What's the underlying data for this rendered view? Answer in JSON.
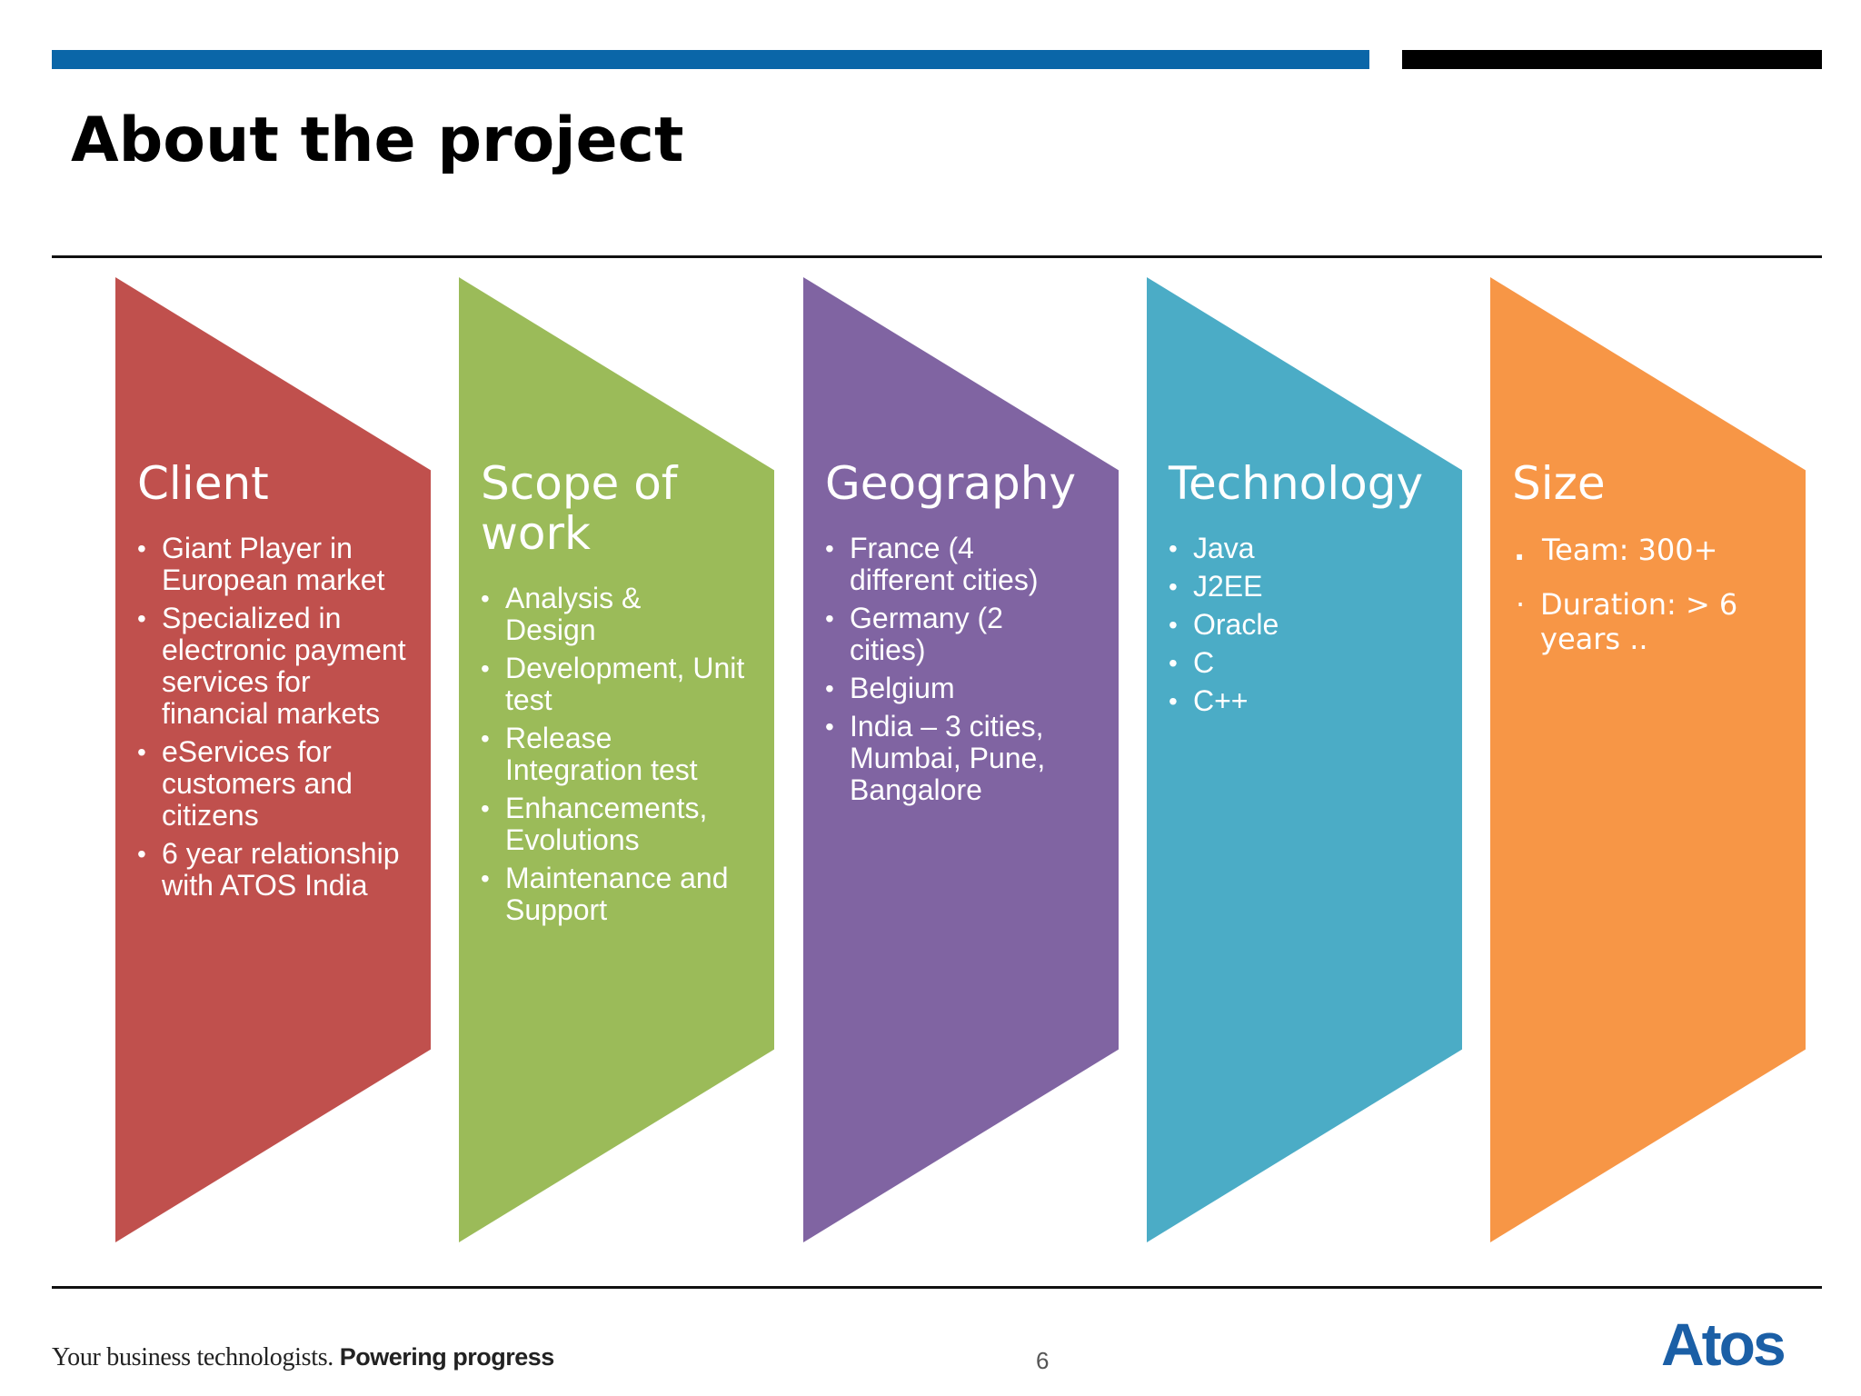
{
  "slide": {
    "title": "About the project",
    "page_number": "6"
  },
  "colors": {
    "top_bar_blue": "#0a66a8",
    "top_bar_black": "#000000",
    "client": "#c0504d",
    "scope": "#9bbb59",
    "geography": "#8064a2",
    "technology": "#4bacc6",
    "size": "#f79646",
    "logo_blue": "#1b5fa6"
  },
  "chevrons": {
    "client": {
      "title": "Client",
      "items": [
        "Giant Player in European market",
        "Specialized in electronic payment services for financial markets",
        "eServices for customers and citizens",
        "6 year relationship with ATOS India"
      ]
    },
    "scope": {
      "title": "Scope of work",
      "items": [
        "Analysis & Design",
        "Development, Unit test",
        "Release Integration test",
        "Enhancements, Evolutions",
        "Maintenance and Support"
      ]
    },
    "geography": {
      "title": "Geography",
      "items": [
        "France (4 different cities)",
        "Germany (2 cities)",
        "Belgium",
        "India –  3 cities, Mumbai, Pune, Bangalore"
      ]
    },
    "technology": {
      "title": "Technology",
      "items": [
        "Java",
        "J2EE",
        "Oracle",
        "C",
        "C++"
      ]
    },
    "size": {
      "title": "Size",
      "items": [
        "Team: 300+",
        "Duration: > 6 years .."
      ]
    }
  },
  "footer": {
    "tagline_regular": "Your business technologists.",
    "tagline_bold": "Powering progress",
    "logo_text": "Atos"
  }
}
